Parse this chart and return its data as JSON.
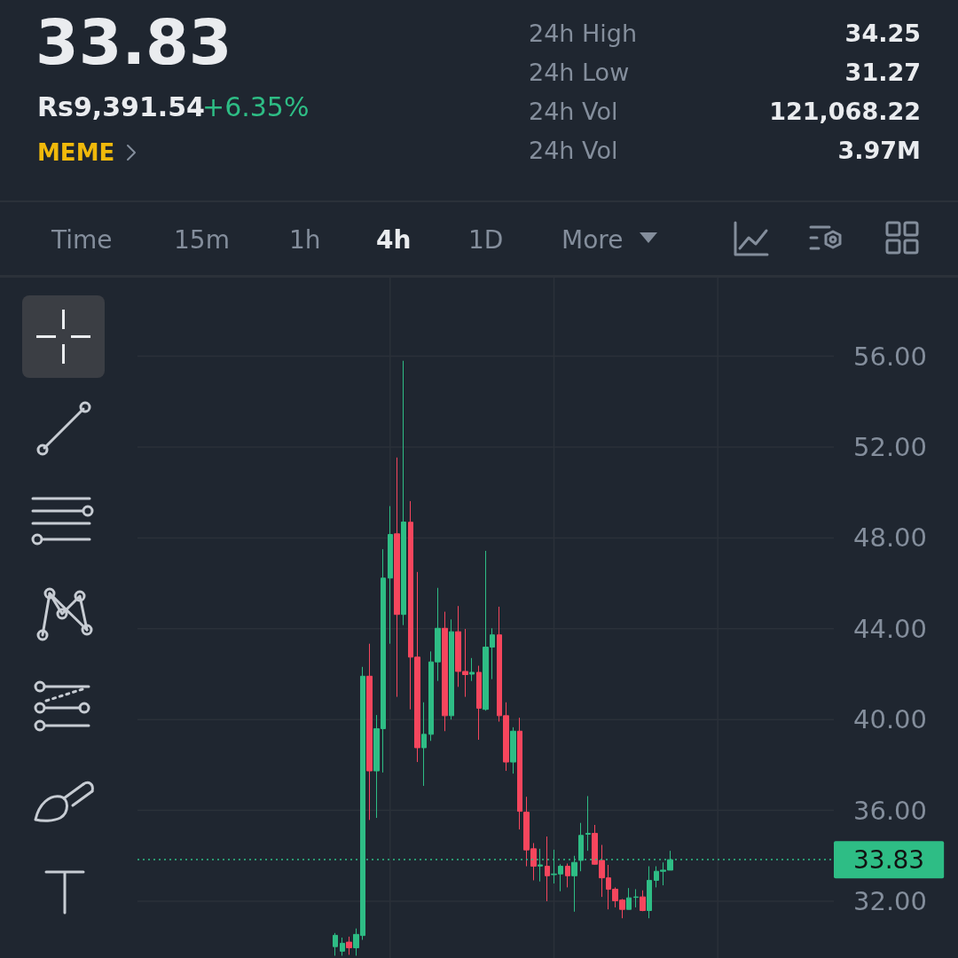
{
  "chart_data": {
    "type": "candlestick",
    "title": "33.83",
    "categories": [
      null,
      null,
      null,
      null,
      null,
      null,
      null,
      null,
      null,
      null,
      null,
      null,
      null,
      null,
      null,
      null,
      null,
      null,
      null,
      null,
      null,
      null,
      null,
      null,
      null,
      null,
      null,
      null,
      null,
      null,
      null,
      null,
      null,
      null,
      null,
      null,
      null,
      null,
      null,
      null,
      null,
      null,
      null,
      null,
      null,
      null,
      null,
      null,
      null,
      null,
      null,
      null,
      null,
      null,
      null,
      null,
      null,
      null,
      null,
      null,
      null,
      null,
      null,
      null,
      null,
      null,
      null,
      null,
      null,
      null,
      null,
      null,
      null,
      null,
      null,
      null,
      null,
      null,
      null,
      null,
      null,
      null,
      null,
      null,
      null,
      null,
      null,
      null,
      null,
      null,
      null,
      null,
      null,
      null,
      null,
      null,
      null,
      null,
      null,
      null,
      null,
      null,
      null
    ],
    "ohlc": [
      null,
      null,
      null,
      null,
      null,
      null,
      null,
      null,
      null,
      null,
      null,
      null,
      null,
      null,
      null,
      null,
      null,
      null,
      null,
      null,
      null,
      null,
      null,
      null,
      null,
      null,
      null,
      null,
      null,
      [
        30.0,
        30.6,
        29.6,
        30.5
      ],
      [
        29.8,
        30.4,
        29.6,
        30.15
      ],
      [
        30.2,
        30.44,
        29.64,
        29.95
      ],
      [
        29.95,
        30.8,
        29.6,
        30.54
      ],
      [
        30.49,
        42.32,
        30.3,
        41.91
      ],
      [
        41.91,
        43.34,
        35.58,
        37.74
      ],
      [
        37.74,
        40.2,
        35.67,
        39.6
      ],
      [
        39.6,
        47.5,
        37.67,
        46.23
      ],
      [
        46.23,
        49.4,
        43.34,
        48.15
      ],
      [
        48.18,
        51.54,
        41.0,
        44.63
      ],
      [
        44.63,
        55.8,
        44.16,
        48.7
      ],
      [
        48.69,
        49.62,
        40.45,
        42.75
      ],
      [
        42.75,
        46.5,
        38.13,
        38.76
      ],
      [
        38.76,
        40.76,
        37.08,
        39.35
      ],
      [
        39.35,
        43.0,
        39.06,
        42.54
      ],
      [
        42.54,
        45.8,
        41.7,
        44.02
      ],
      [
        44.02,
        44.75,
        39.49,
        40.17
      ],
      [
        40.17,
        44.41,
        40.0,
        43.87
      ],
      [
        43.87,
        45.0,
        41.44,
        42.12
      ],
      [
        42.12,
        43.99,
        41.0,
        41.98
      ],
      [
        42.0,
        42.71,
        41.7,
        42.08
      ],
      [
        42.08,
        42.37,
        39.11,
        40.5
      ],
      [
        40.45,
        47.43,
        40.39,
        43.19
      ],
      [
        43.19,
        44.02,
        41.78,
        43.73
      ],
      [
        43.73,
        44.97,
        39.91,
        40.17
      ],
      [
        40.17,
        40.76,
        37.74,
        38.13
      ],
      [
        38.13,
        39.66,
        37.62,
        39.49
      ],
      [
        39.49,
        40.08,
        35.16,
        35.96
      ],
      [
        35.92,
        36.6,
        33.54,
        34.26
      ],
      [
        34.31,
        34.56,
        32.92,
        33.54
      ],
      [
        33.55,
        34.31,
        32.87,
        33.6
      ],
      [
        33.54,
        34.85,
        32.0,
        33.12
      ],
      [
        33.17,
        34.27,
        32.78,
        33.2
      ],
      [
        33.2,
        33.63,
        32.44,
        33.54
      ],
      [
        33.54,
        33.66,
        32.61,
        33.12
      ],
      [
        33.12,
        34.0,
        31.54,
        33.71
      ],
      [
        33.8,
        35.45,
        33.32,
        34.9
      ],
      [
        34.95,
        36.63,
        34.22,
        34.99
      ],
      [
        34.99,
        35.36,
        33.6,
        33.63
      ],
      [
        33.8,
        34.48,
        32.19,
        33.03
      ],
      [
        33.03,
        33.6,
        31.64,
        32.53
      ],
      [
        32.53,
        32.61,
        31.73,
        32.02
      ],
      [
        32.05,
        32.1,
        31.25,
        31.64
      ],
      [
        31.64,
        32.58,
        31.64,
        32.15
      ],
      [
        32.17,
        32.53,
        31.73,
        32.19
      ],
      [
        32.19,
        32.48,
        31.56,
        31.59
      ],
      [
        31.59,
        33.54,
        31.25,
        32.92
      ],
      [
        32.92,
        33.54,
        32.61,
        33.32
      ],
      [
        33.32,
        33.71,
        32.7,
        33.37
      ],
      [
        33.37,
        34.22,
        33.37,
        33.83
      ],
      null,
      null,
      null,
      null,
      null,
      null,
      null,
      null,
      null,
      null,
      null,
      null,
      null,
      null,
      null,
      null,
      null,
      null,
      null,
      null,
      null,
      null,
      null,
      null
    ],
    "ylim": [
      29.5,
      59.5
    ],
    "yticks": [
      {
        "value": 32,
        "label": "32.00"
      },
      {
        "value": 36,
        "label": "36.00"
      },
      {
        "value": 40,
        "label": "40.00"
      },
      {
        "value": 44,
        "label": "44.00"
      },
      {
        "value": 48,
        "label": "48.00"
      },
      {
        "value": 52,
        "label": "52.00"
      },
      {
        "value": 56,
        "label": "56.00"
      }
    ],
    "grid": true,
    "tick_labels": "y",
    "ref_lines": [
      {
        "axis": "y",
        "value": 33.83,
        "label": "33.83",
        "color": "#2ebd85",
        "line_style": "dotted"
      }
    ],
    "annotations": [
      "Rs9,391.54",
      "+6.35%",
      "MEME",
      "24h High",
      "34.25",
      "24h Low",
      "31.27",
      "24h Vol",
      "121,068.22",
      "24h Vol",
      "3.97M",
      "Time",
      "15m",
      "1h",
      "4h",
      "1D",
      "More"
    ]
  }
}
